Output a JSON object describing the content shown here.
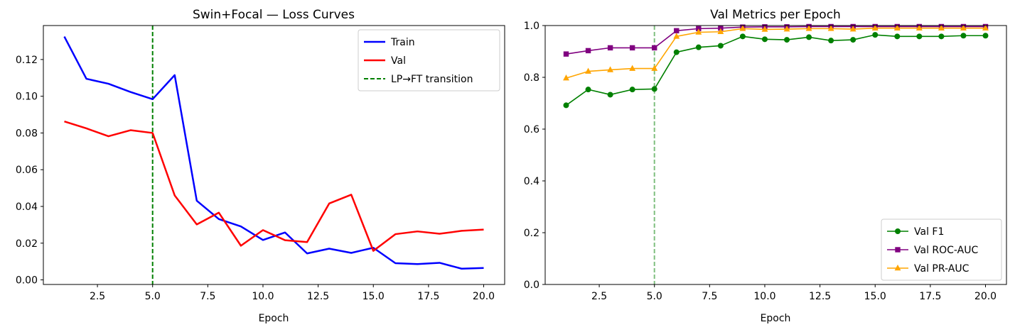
{
  "chart_data": [
    {
      "type": "line",
      "title": "Swin+Focal — Loss Curves",
      "xlabel": "Epoch",
      "ylabel": "",
      "xlim": [
        0.05,
        20.95
      ],
      "ylim": [
        -0.0025,
        0.1385
      ],
      "xticks": [
        2.5,
        5.0,
        7.5,
        10.0,
        12.5,
        15.0,
        17.5,
        20.0
      ],
      "xtick_labels": [
        "2.5",
        "5.0",
        "7.5",
        "10.0",
        "12.5",
        "15.0",
        "17.5",
        "20.0"
      ],
      "yticks": [
        0.0,
        0.02,
        0.04,
        0.06,
        0.08,
        0.1,
        0.12
      ],
      "ytick_labels": [
        "0.00",
        "0.02",
        "0.04",
        "0.06",
        "0.08",
        "0.10",
        "0.12"
      ],
      "grid": false,
      "legend_position": "top-right",
      "x": [
        1,
        2,
        3,
        4,
        5,
        6,
        7,
        8,
        9,
        10,
        11,
        12,
        13,
        14,
        15,
        16,
        17,
        18,
        19,
        20
      ],
      "series": [
        {
          "name": "Train",
          "color": "#0000ff",
          "style": "solid",
          "values": [
            0.1325,
            0.1095,
            0.1068,
            0.1023,
            0.0984,
            0.1115,
            0.0431,
            0.0331,
            0.0291,
            0.0217,
            0.0258,
            0.0144,
            0.017,
            0.0147,
            0.0175,
            0.0091,
            0.0086,
            0.0093,
            0.0061,
            0.0065
          ]
        },
        {
          "name": "Val",
          "color": "#ff0000",
          "style": "solid",
          "values": [
            0.0863,
            0.0825,
            0.0782,
            0.0815,
            0.08,
            0.046,
            0.0302,
            0.0366,
            0.0186,
            0.0271,
            0.0216,
            0.0206,
            0.0416,
            0.0464,
            0.0158,
            0.0249,
            0.0264,
            0.0251,
            0.0267,
            0.0274
          ]
        }
      ],
      "vlines": [
        {
          "name": "LP→FT transition",
          "x": 5,
          "color": "#008000",
          "style": "dashed"
        }
      ]
    },
    {
      "type": "line",
      "title": "Val Metrics per Epoch",
      "xlabel": "Epoch",
      "ylabel": "",
      "xlim": [
        0.05,
        20.95
      ],
      "ylim": [
        0.0,
        1.0
      ],
      "xticks": [
        2.5,
        5.0,
        7.5,
        10.0,
        12.5,
        15.0,
        17.5,
        20.0
      ],
      "xtick_labels": [
        "2.5",
        "5.0",
        "7.5",
        "10.0",
        "12.5",
        "15.0",
        "17.5",
        "20.0"
      ],
      "yticks": [
        0.0,
        0.2,
        0.4,
        0.6,
        0.8,
        1.0
      ],
      "ytick_labels": [
        "0.0",
        "0.2",
        "0.4",
        "0.6",
        "0.8",
        "1.0"
      ],
      "grid": false,
      "legend_position": "bottom-right",
      "x": [
        1,
        2,
        3,
        4,
        5,
        6,
        7,
        8,
        9,
        10,
        11,
        12,
        13,
        14,
        15,
        16,
        17,
        18,
        19,
        20
      ],
      "series": [
        {
          "name": "Val F1",
          "color": "#008000",
          "marker": "circle",
          "values": [
            0.692,
            0.753,
            0.733,
            0.753,
            0.755,
            0.897,
            0.916,
            0.922,
            0.958,
            0.947,
            0.945,
            0.955,
            0.942,
            0.945,
            0.964,
            0.958,
            0.958,
            0.958,
            0.961,
            0.961
          ]
        },
        {
          "name": "Val ROC-AUC",
          "color": "#800080",
          "marker": "square",
          "values": [
            0.89,
            0.903,
            0.914,
            0.914,
            0.914,
            0.98,
            0.988,
            0.99,
            0.994,
            0.995,
            0.995,
            0.996,
            0.996,
            0.996,
            0.996,
            0.996,
            0.996,
            0.996,
            0.996,
            0.996
          ]
        },
        {
          "name": "Val PR-AUC",
          "color": "#ffa500",
          "marker": "triangle",
          "values": [
            0.797,
            0.823,
            0.829,
            0.834,
            0.834,
            0.958,
            0.974,
            0.976,
            0.988,
            0.985,
            0.986,
            0.988,
            0.988,
            0.986,
            0.99,
            0.99,
            0.99,
            0.99,
            0.99,
            0.99
          ]
        }
      ],
      "vlines": [
        {
          "name": "",
          "x": 5,
          "color": "#008000",
          "style": "dashed",
          "opacity": 0.5
        }
      ]
    }
  ]
}
